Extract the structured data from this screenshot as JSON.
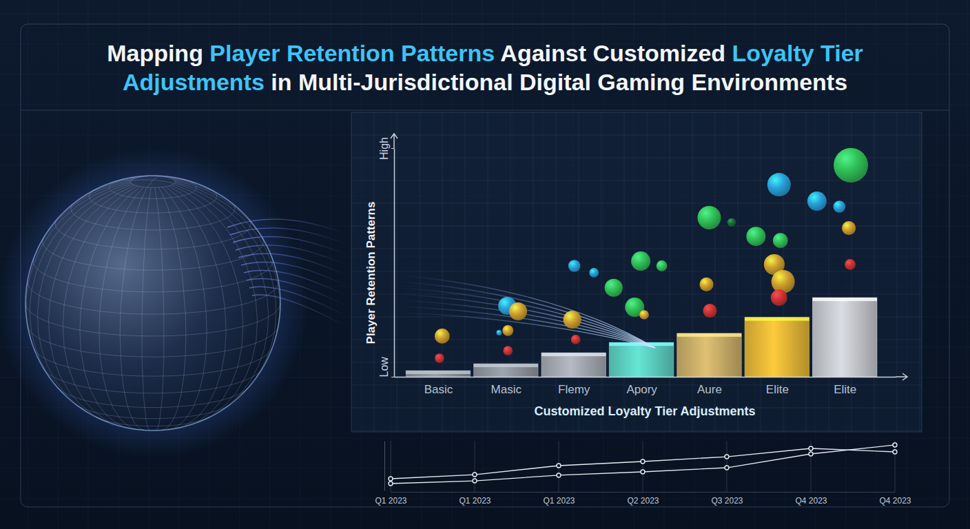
{
  "chart_data": [
    {
      "type": "bar",
      "title": "Mapping Player Retention Patterns Against Customized Loyalty Tier Adjustments in Multi-Jurisdictional Digital Gaming Environments",
      "title_highlights": [
        "Player Retention Patterns",
        "Loyalty Tier Adjustments"
      ],
      "x_label": "Customized Loyalty Tier Adjustments",
      "y_label": "Player Retention Patterns",
      "categories": [
        "Basic",
        "Masic",
        "Flemy",
        "Apory",
        "Aure",
        "Elite",
        "Elite"
      ],
      "values": [
        2.7,
        5.7,
        10.5,
        15,
        19,
        26,
        34.6
      ],
      "colors": [
        "#8a9099",
        "#8e949d",
        "#a3a8b0",
        "#5ccfc0",
        "#c9ad68",
        "#e3b636",
        "#c4c7cc"
      ],
      "xlim": [
        -0.65,
        6.75
      ],
      "ylim": [
        0,
        100
      ],
      "yticks": [
        {
          "value": 0,
          "label": "Low"
        },
        {
          "value": 100,
          "label": "High"
        }
      ],
      "bubbles": {
        "x": [
          0.06,
          0.02,
          1.02,
          1.18,
          1.03,
          0.9,
          1.03,
          2.01,
          2.3,
          1.98,
          2.03,
          2.59,
          2.99,
          3.3,
          2.9,
          3.04,
          4.0,
          4.33,
          3.96,
          4.01,
          5.03,
          4.69,
          5.05,
          4.96,
          5.09,
          5.03,
          5.59,
          5.92,
          6.09,
          6.06,
          6.08
        ],
        "y": [
          17.8,
          8.1,
          31,
          28.6,
          20.2,
          19.3,
          11.4,
          48.5,
          45.5,
          25,
          16.3,
          38.9,
          50.6,
          48.5,
          30.4,
          27.1,
          69.6,
          67.5,
          40.4,
          28.9,
          84,
          61.4,
          59.6,
          49.1,
          41.6,
          34.6,
          76.8,
          74.4,
          92.5,
          65,
          49.1
        ],
        "size": [
          15,
          6,
          22,
          22,
          8,
          2,
          6,
          10,
          6,
          22,
          6,
          22,
          25,
          8,
          25,
          6,
          37,
          5,
          13,
          13,
          37,
          25,
          15,
          29,
          37,
          18,
          25,
          10,
          80,
          13,
          8
        ],
        "colors": [
          "#d9a62e",
          "#d63434",
          "#2aa8e6",
          "#d9a62e",
          "#d9a62e",
          "#2aa8e6",
          "#d63434",
          "#2aa8e6",
          "#2aa8e6",
          "#d9a62e",
          "#d63434",
          "#33c95a",
          "#33c95a",
          "#33c95a",
          "#33c95a",
          "#d9a62e",
          "#33c95a",
          "#1f6e3a",
          "#d9a62e",
          "#d63434",
          "#2aa8e6",
          "#33c95a",
          "#33c95a",
          "#d9a62e",
          "#d9a62e",
          "#d63434",
          "#2aa8e6",
          "#2aa8e6",
          "#33c95a",
          "#d9a62e",
          "#d63434"
        ]
      }
    },
    {
      "type": "line",
      "categories": [
        "Q1 2023",
        "Q1 2023",
        "Q1 2023",
        "Q2 2023",
        "Q3 2023",
        "Q4 2023",
        "Q4 2023"
      ],
      "series": [
        {
          "color": "#e6ebf2",
          "marker": "circle",
          "line_style": "solid",
          "values": [
            23.6,
            31.9,
            50,
            58.3,
            68,
            84.7,
            77.8
          ]
        },
        {
          "color": "#e6ebf2",
          "marker": "circle",
          "line_style": "solid",
          "values": [
            13.9,
            19.4,
            30.6,
            37.5,
            45.8,
            73.6,
            91.7
          ]
        }
      ],
      "ylim": [
        0,
        100
      ],
      "yticks": [],
      "tick_labels": "x"
    }
  ]
}
